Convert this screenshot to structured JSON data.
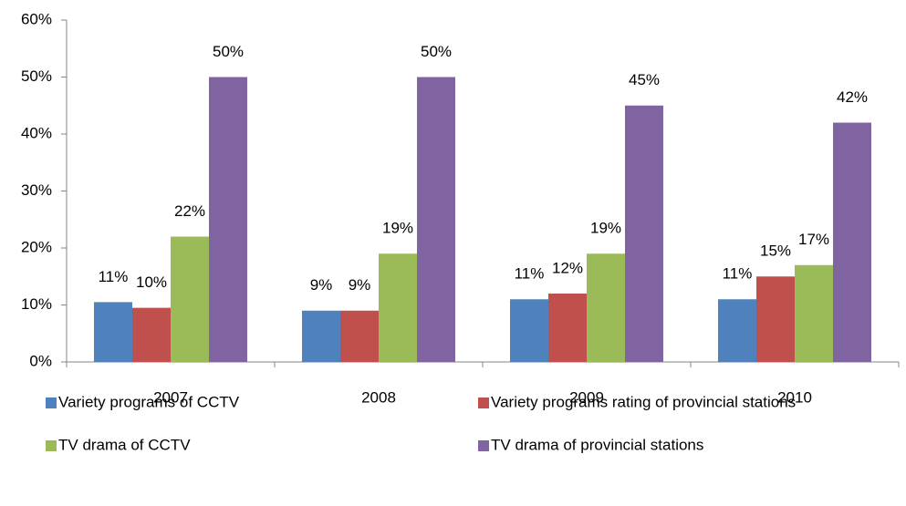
{
  "chart_data": {
    "type": "bar",
    "categories": [
      "2007",
      "2008",
      "2009",
      "2010"
    ],
    "series": [
      {
        "name": "Variety programs of CCTV",
        "color": "#4f81bd",
        "values": [
          10.5,
          9,
          11,
          11
        ],
        "value_labels": [
          "11%",
          "9%",
          "11%",
          "11%"
        ]
      },
      {
        "name": "Variety programs rating of provincial stations",
        "color": "#c0504d",
        "values": [
          9.5,
          9,
          12,
          15
        ],
        "value_labels": [
          "10%",
          "9%",
          "12%",
          "15%"
        ]
      },
      {
        "name": "TV drama of CCTV",
        "color": "#9bbb59",
        "values": [
          22,
          19,
          19,
          17
        ],
        "value_labels": [
          "22%",
          "19%",
          "19%",
          "17%"
        ]
      },
      {
        "name": "TV drama of provincial stations",
        "color": "#8064a2",
        "values": [
          50,
          50,
          45,
          42
        ],
        "value_labels": [
          "50%",
          "50%",
          "45%",
          "42%"
        ]
      }
    ],
    "ylim": [
      0,
      60
    ],
    "yticks": [
      {
        "value": 0,
        "label": "0%"
      },
      {
        "value": 10,
        "label": "10%"
      },
      {
        "value": 20,
        "label": "20%"
      },
      {
        "value": 30,
        "label": "30%"
      },
      {
        "value": 40,
        "label": "40%"
      },
      {
        "value": 50,
        "label": "50%"
      },
      {
        "value": 60,
        "label": "60%"
      }
    ],
    "grid": false,
    "legend": "bottom"
  }
}
